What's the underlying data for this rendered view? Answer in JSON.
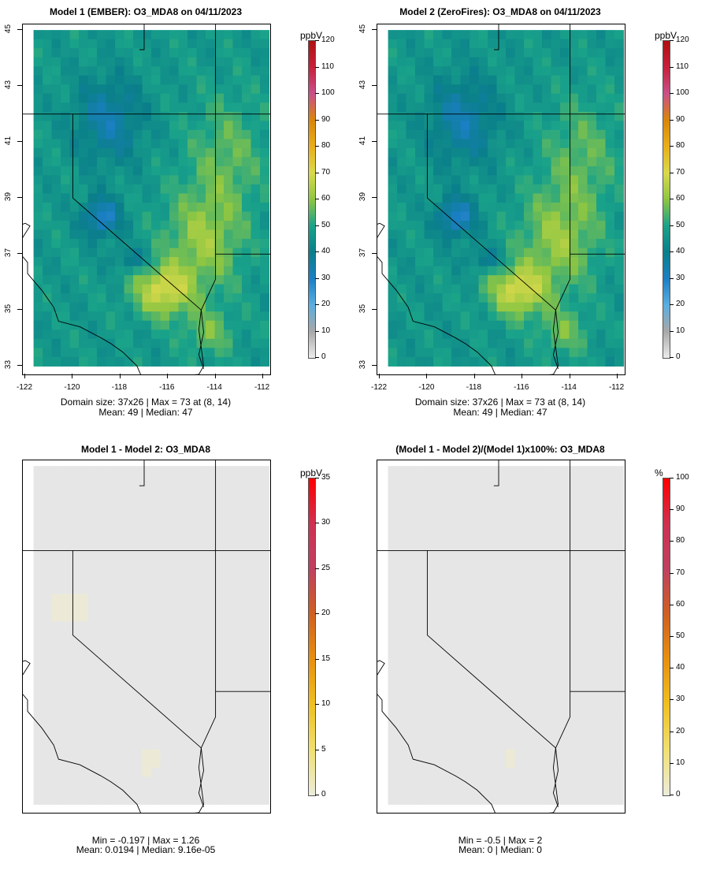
{
  "panels": [
    {
      "title": "Model 1 (EMBER): O3_MDA8 on 04/11/2023",
      "stats_line1": "Domain size: 37x26 | Max = 73 at (8, 14)",
      "stats_line2": "Mean: 49 |  Median: 47",
      "units": "ppbV",
      "colorbar_ticks": [
        "0",
        "10",
        "20",
        "30",
        "40",
        "50",
        "60",
        "70",
        "80",
        "90",
        "100",
        "110",
        "120"
      ],
      "colorbar_range": [
        0,
        120
      ],
      "field": "model1",
      "show_axes": true
    },
    {
      "title": "Model 2 (ZeroFires): O3_MDA8 on 04/11/2023",
      "stats_line1": "Domain size: 37x26 | Max = 73 at (8, 14)",
      "stats_line2": "Mean: 49 |  Median: 47",
      "units": "ppbV",
      "colorbar_ticks": [
        "0",
        "10",
        "20",
        "30",
        "40",
        "50",
        "60",
        "70",
        "80",
        "90",
        "100",
        "110",
        "120"
      ],
      "colorbar_range": [
        0,
        120
      ],
      "field": "model2",
      "show_axes": true
    },
    {
      "title": "Model 1 - Model 2: O3_MDA8",
      "stats_line1": "Min = -0.197 | Max = 1.26",
      "stats_line2": "Mean: 0.0194 |  Median: 9.16e-05",
      "units": "ppbV",
      "colorbar_ticks": [
        "0",
        "5",
        "10",
        "15",
        "20",
        "25",
        "30",
        "35"
      ],
      "colorbar_range": [
        0,
        35
      ],
      "field": "diff",
      "show_axes": false
    },
    {
      "title": "(Model 1 - Model 2)/(Model 1)x100%: O3_MDA8",
      "stats_line1": "Min = -0.5 | Max = 2",
      "stats_line2": "Mean: 0 |  Median: 0",
      "units": "%",
      "colorbar_ticks": [
        "0",
        "10",
        "20",
        "30",
        "40",
        "50",
        "60",
        "70",
        "80",
        "90",
        "100"
      ],
      "colorbar_range": [
        0,
        100
      ],
      "field": "pct",
      "show_axes": false
    }
  ],
  "axes": {
    "lon_ticks": [
      "-122",
      "-120",
      "-118",
      "-116",
      "-114",
      "-112"
    ],
    "lat_ticks": [
      "33",
      "35",
      "37",
      "39",
      "41",
      "43",
      "45"
    ]
  },
  "colors": {
    "ozone_ramp": [
      "#ececec",
      "#a8a8a8",
      "#5aaee0",
      "#1b7fc4",
      "#0a7f8a",
      "#1aa38a",
      "#8ec642",
      "#d9d94a",
      "#eaae1a",
      "#d9860a",
      "#c9508a",
      "#c8203a",
      "#b01010"
    ],
    "diff_ramp": [
      "#ececdc",
      "#f0e070",
      "#f0c020",
      "#e89010",
      "#d06020",
      "#c04060",
      "#d03050",
      "#ff0000"
    ],
    "background_grey": "#e6e6e6"
  }
}
